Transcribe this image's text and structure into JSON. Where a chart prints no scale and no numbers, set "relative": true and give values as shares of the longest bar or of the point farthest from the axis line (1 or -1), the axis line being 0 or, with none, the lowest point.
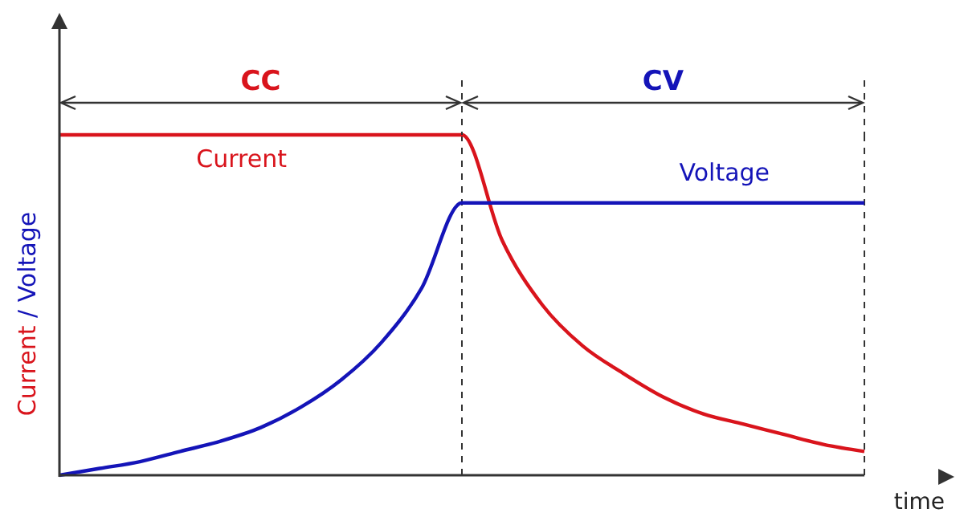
{
  "chart_data": {
    "type": "line",
    "relative": true,
    "ylabel": "Current / Voltage",
    "xlabel": "time",
    "categories": [
      null,
      null,
      null,
      null,
      null,
      null,
      null,
      null,
      null,
      null,
      null,
      null,
      null,
      null,
      null,
      null,
      null,
      null,
      null,
      null,
      null
    ],
    "series": [
      {
        "name": "Current",
        "color": "#d9141c",
        "values": [
          1,
          1,
          1,
          1,
          1,
          1,
          1,
          1,
          1,
          1,
          1,
          0.69,
          0.5,
          0.38,
          0.3,
          0.23,
          0.18,
          0.15,
          0.12,
          0.09,
          0.07
        ]
      },
      {
        "name": "Voltage",
        "color": "#1414b8",
        "values": [
          0,
          0.02,
          0.04,
          0.07,
          0.1,
          0.14,
          0.2,
          0.28,
          0.39,
          0.55,
          0.8,
          0.8,
          0.8,
          0.8,
          0.8,
          0.8,
          0.8,
          0.8,
          0.8,
          0.8,
          0.8
        ]
      }
    ],
    "annotations": [
      "CC",
      "CV"
    ],
    "marker": "none",
    "line_style": "solid"
  }
}
